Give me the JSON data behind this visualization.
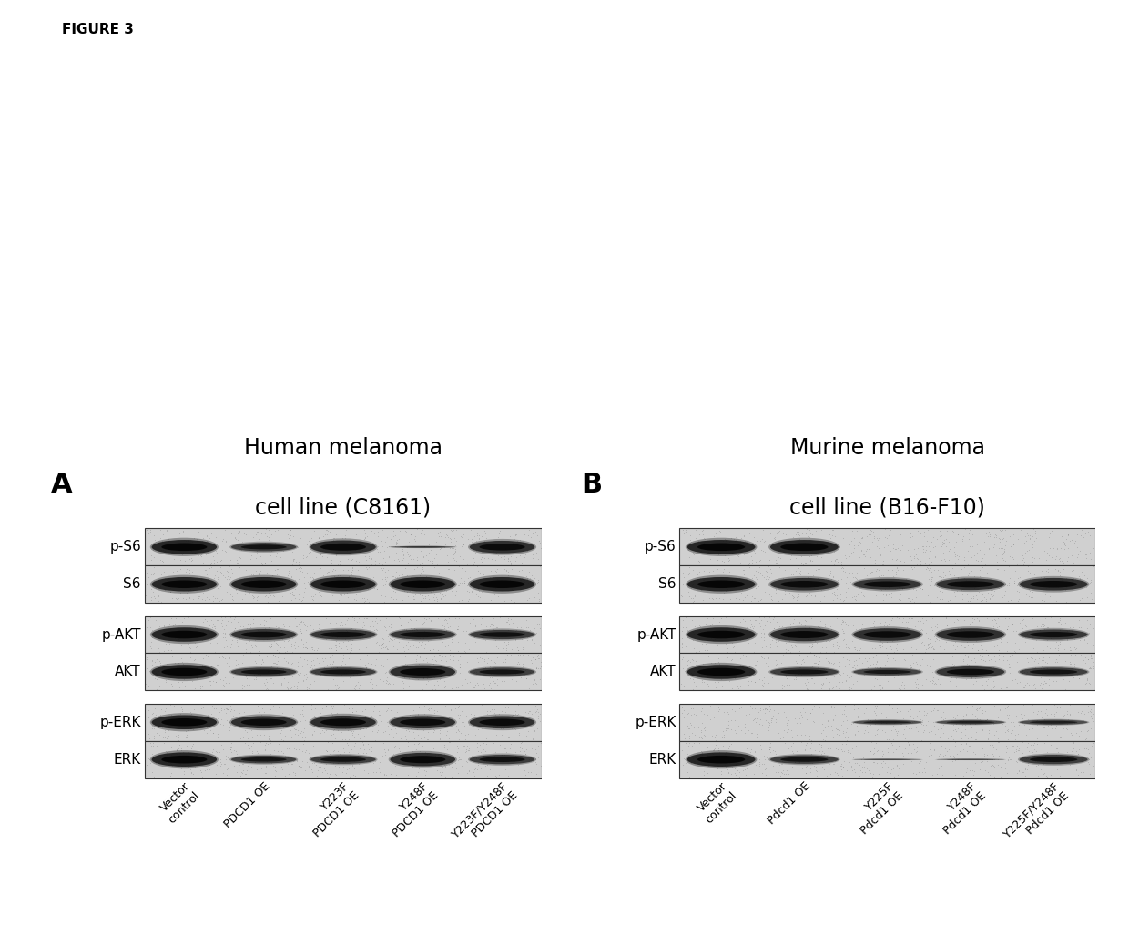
{
  "figure_title": "FIGURE 3",
  "background_color": "#ffffff",
  "panel_A": {
    "label": "A",
    "title_line1": "Human melanoma",
    "title_line2": "cell line (C8161)",
    "rows": [
      "p-S6",
      "S6",
      "p-AKT",
      "AKT",
      "p-ERK",
      "ERK"
    ],
    "cols": [
      "Vector\ncontrol",
      "PDCD1 OE",
      "Y223F\nPDCD1 OE",
      "Y248F\nPDCD1 OE",
      "Y223F/Y248F\nPDCD1 OE"
    ],
    "band_patterns": {
      "p-S6": [
        1.0,
        0.55,
        0.85,
        0.12,
        0.8
      ],
      "S6": [
        1.0,
        1.0,
        1.0,
        1.0,
        1.0
      ],
      "p-AKT": [
        1.0,
        0.7,
        0.65,
        0.65,
        0.6
      ],
      "AKT": [
        1.0,
        0.55,
        0.55,
        0.85,
        0.55
      ],
      "p-ERK": [
        1.0,
        0.8,
        0.85,
        0.8,
        0.8
      ],
      "ERK": [
        1.0,
        0.5,
        0.55,
        0.85,
        0.6
      ]
    }
  },
  "panel_B": {
    "label": "B",
    "title_line1": "Murine melanoma",
    "title_line2": "cell line (B16-F10)",
    "rows": [
      "p-S6",
      "S6",
      "p-AKT",
      "AKT",
      "p-ERK",
      "ERK"
    ],
    "cols": [
      "Vector\ncontrol",
      "Pdcd1 OE",
      "Y225F\nPdcd1 OE",
      "Y248F\nPdcd1 OE",
      "Y225F/Y248F\nPdcd1 OE"
    ],
    "band_patterns": {
      "p-S6": [
        1.0,
        0.95,
        0.04,
        0.04,
        0.04
      ],
      "S6": [
        1.0,
        0.8,
        0.7,
        0.75,
        0.8
      ],
      "p-AKT": [
        1.0,
        0.85,
        0.8,
        0.8,
        0.65
      ],
      "AKT": [
        1.0,
        0.55,
        0.45,
        0.7,
        0.55
      ],
      "p-ERK": [
        0.04,
        0.04,
        0.28,
        0.28,
        0.32
      ],
      "ERK": [
        1.0,
        0.55,
        0.08,
        0.08,
        0.6
      ]
    }
  },
  "band_color": "#1a1a1a",
  "bg_light": "#d0d0d0",
  "bg_dark": "#b8b8b8",
  "label_fontsize": 11,
  "title_fontsize": 17,
  "panel_label_fontsize": 22,
  "xtick_fontsize": 9,
  "fig_label_fontsize": 11
}
